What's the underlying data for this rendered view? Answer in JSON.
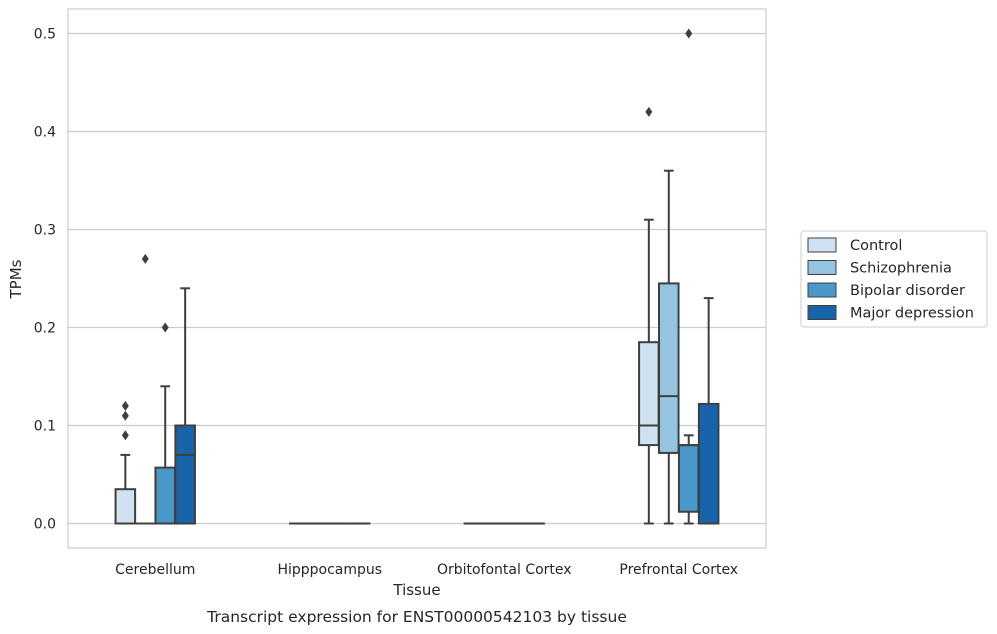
{
  "chart_data": {
    "type": "box",
    "title": "",
    "caption": "Transcript expression for ENST00000542103 by tissue",
    "xlabel": "Tissue",
    "ylabel": "TPMs",
    "ylim": [
      -0.025,
      0.525
    ],
    "yticks": [
      "0.0",
      "0.1",
      "0.2",
      "0.3",
      "0.4",
      "0.5"
    ],
    "ytick_values": [
      0,
      0.1,
      0.2,
      0.3,
      0.4,
      0.5
    ],
    "grid": true,
    "legend_position": "right",
    "categories": [
      "Cerebellum",
      "Hipppocampus",
      "Orbitofontal Cortex",
      "Prefrontal Cortex"
    ],
    "series": [
      {
        "name": "Control",
        "color": "#d0e1f2",
        "boxes": [
          {
            "q1": 0,
            "median": 0,
            "q3": 0.035,
            "whisker_low": 0,
            "whisker_high": 0.07,
            "outliers": [
              0.09,
              0.11,
              0.12
            ]
          },
          {
            "q1": 0,
            "median": 0,
            "q3": 0,
            "whisker_low": 0,
            "whisker_high": 0,
            "outliers": []
          },
          {
            "q1": 0,
            "median": 0,
            "q3": 0,
            "whisker_low": 0,
            "whisker_high": 0,
            "outliers": []
          },
          {
            "q1": 0.08,
            "median": 0.1,
            "q3": 0.185,
            "whisker_low": 0,
            "whisker_high": 0.31,
            "outliers": [
              0.42
            ]
          }
        ]
      },
      {
        "name": "Schizophrenia",
        "color": "#94c4df",
        "boxes": [
          {
            "q1": 0,
            "median": 0,
            "q3": 0,
            "whisker_low": 0,
            "whisker_high": 0,
            "outliers": [
              0.27
            ]
          },
          {
            "q1": 0,
            "median": 0,
            "q3": 0,
            "whisker_low": 0,
            "whisker_high": 0,
            "outliers": []
          },
          {
            "q1": 0,
            "median": 0,
            "q3": 0,
            "whisker_low": 0,
            "whisker_high": 0,
            "outliers": []
          },
          {
            "q1": 0.072,
            "median": 0.13,
            "q3": 0.245,
            "whisker_low": 0,
            "whisker_high": 0.36,
            "outliers": []
          }
        ]
      },
      {
        "name": "Bipolar disorder",
        "color": "#4a98c9",
        "boxes": [
          {
            "q1": 0,
            "median": 0,
            "q3": 0.057,
            "whisker_low": 0,
            "whisker_high": 0.14,
            "outliers": [
              0.2
            ]
          },
          {
            "q1": 0,
            "median": 0,
            "q3": 0,
            "whisker_low": 0,
            "whisker_high": 0,
            "outliers": []
          },
          {
            "q1": 0,
            "median": 0,
            "q3": 0,
            "whisker_low": 0,
            "whisker_high": 0,
            "outliers": []
          },
          {
            "q1": 0.012,
            "median": 0.08,
            "q3": 0.08,
            "whisker_low": 0,
            "whisker_high": 0.09,
            "outliers": [
              0.5
            ]
          }
        ]
      },
      {
        "name": "Major depression",
        "color": "#1764ab",
        "boxes": [
          {
            "q1": 0,
            "median": 0.07,
            "q3": 0.1,
            "whisker_low": 0,
            "whisker_high": 0.24,
            "outliers": []
          },
          {
            "q1": 0,
            "median": 0,
            "q3": 0,
            "whisker_low": 0,
            "whisker_high": 0,
            "outliers": []
          },
          {
            "q1": 0,
            "median": 0,
            "q3": 0,
            "whisker_low": 0,
            "whisker_high": 0,
            "outliers": []
          },
          {
            "q1": 0,
            "median": 0,
            "q3": 0.122,
            "whisker_low": 0,
            "whisker_high": 0.23,
            "outliers": []
          }
        ]
      }
    ]
  }
}
